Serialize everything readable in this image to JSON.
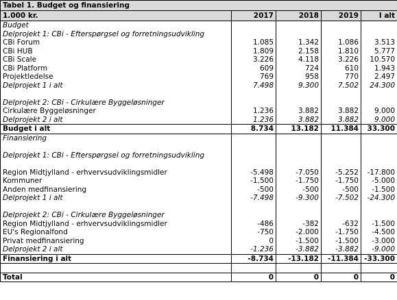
{
  "table": {
    "title": "Tabel 1. Budget og finansiering",
    "header": [
      "1.000 kr.",
      "2017",
      "2018",
      "2019",
      "I alt"
    ],
    "rows": [
      [
        "Budget"
      ],
      [
        "Delprojekt 1: CBi - Efterspørgsel og forretningsudvikling"
      ],
      [
        "CBi Forum",
        "1.085",
        "1.342",
        "1.086",
        "3.513"
      ],
      [
        "CBi HUB",
        "1.809",
        "2.158",
        "1.810",
        "5.777"
      ],
      [
        "CBi Scale",
        "3.226",
        "4.118",
        "3.226",
        "10.570"
      ],
      [
        "CBi Platform",
        "609",
        "724",
        "610",
        "1.943"
      ],
      [
        "Projektledelse",
        "769",
        "958",
        "770",
        "2.497"
      ],
      [
        "Delprojekt 1 i alt",
        "7.498",
        "9.300",
        "7.502",
        "24.300"
      ],
      [
        "Delprojekt 2: CBi - Cirkulære Byggeløsninger"
      ],
      [
        "Cirkulære Byggeløsninger",
        "1.236",
        "3.882",
        "3.882",
        "9.000"
      ],
      [
        "Delprojekt 2 i alt",
        "1.236",
        "3.882",
        "3.882",
        "9.000"
      ],
      [
        "Budget i alt",
        "8.734",
        "13.182",
        "11.384",
        "33.300"
      ],
      [
        "Finansiering"
      ],
      [
        "Delprojekt 1: CBi - Efterspørgsel og forretningsudvikling"
      ],
      [
        "Region Midtjylland - erhvervsudviklingsmidler",
        "-5.498",
        "-7.050",
        "-5.252",
        "-17.800"
      ],
      [
        "Kommuner",
        "-1.500",
        "-1.750",
        "-1.750",
        "-5.000"
      ],
      [
        "Anden medfinansiering",
        "-500",
        "-500",
        "-500",
        "-1.500"
      ],
      [
        "Delprojekt 1 i alt",
        "-7.498",
        "-9.300",
        "-7.502",
        "-24.300"
      ],
      [
        "Delprojekt 2: CBi - Cirkulære Byggeløsninger"
      ],
      [
        "Region Midtjylland - erhvervsudviklingsmidler",
        "-486",
        "-382",
        "-632",
        "-1.500"
      ],
      [
        "EU's Regionalfond",
        "-750",
        "-2.000",
        "-1.750",
        "-4.500"
      ],
      [
        "Privat medfinansiering",
        "0",
        "-1.500",
        "-1.500",
        "-3.000"
      ],
      [
        "Delprojekt 2 i alt",
        "-1.236",
        "-3.882",
        "-3.882",
        "-9.000"
      ],
      [
        "Finansiering i alt",
        "-8.734",
        "-13.182",
        "-11.384",
        "-33.300"
      ],
      [
        "Total",
        "0",
        "0",
        "0",
        "0"
      ]
    ]
  }
}
